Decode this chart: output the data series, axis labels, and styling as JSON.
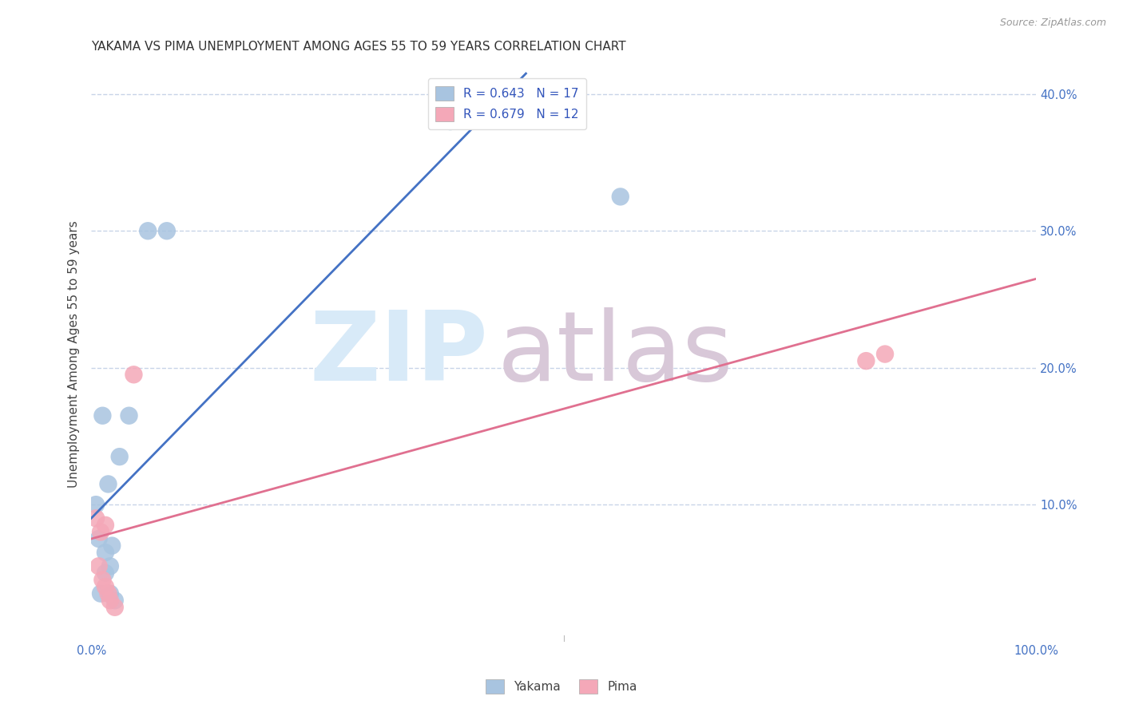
{
  "title": "YAKAMA VS PIMA UNEMPLOYMENT AMONG AGES 55 TO 59 YEARS CORRELATION CHART",
  "source": "Source: ZipAtlas.com",
  "xlabel": "",
  "ylabel": "Unemployment Among Ages 55 to 59 years",
  "xlim": [
    0,
    1.0
  ],
  "ylim": [
    0,
    0.42
  ],
  "xticks": [
    0.0,
    0.1,
    0.2,
    0.3,
    0.4,
    0.5,
    0.6,
    0.7,
    0.8,
    0.9,
    1.0
  ],
  "xticklabels": [
    "0.0%",
    "",
    "",
    "",
    "",
    "",
    "",
    "",
    "",
    "",
    "100.0%"
  ],
  "yticks": [
    0.0,
    0.1,
    0.2,
    0.3,
    0.4
  ],
  "yticklabels": [
    "",
    "10.0%",
    "20.0%",
    "30.0%",
    "40.0%"
  ],
  "legend_r_yakama": "R = 0.643",
  "legend_n_yakama": "N = 17",
  "legend_r_pima": "R = 0.679",
  "legend_n_pima": "N = 12",
  "yakama_color": "#a8c4e0",
  "pima_color": "#f4a8b8",
  "yakama_line_color": "#4472c4",
  "pima_line_color": "#e07090",
  "watermark_zip": "ZIP",
  "watermark_atlas": "atlas",
  "watermark_color_zip": "#d8eaf8",
  "watermark_color_atlas": "#d8c8d8",
  "yakama_x": [
    0.005,
    0.008,
    0.01,
    0.012,
    0.015,
    0.015,
    0.018,
    0.02,
    0.02,
    0.022,
    0.025,
    0.03,
    0.04,
    0.06,
    0.08,
    0.38,
    0.56
  ],
  "yakama_y": [
    0.1,
    0.075,
    0.035,
    0.165,
    0.05,
    0.065,
    0.115,
    0.035,
    0.055,
    0.07,
    0.03,
    0.135,
    0.165,
    0.3,
    0.3,
    0.38,
    0.325
  ],
  "pima_x": [
    0.005,
    0.008,
    0.01,
    0.012,
    0.015,
    0.015,
    0.018,
    0.02,
    0.025,
    0.045,
    0.82,
    0.84
  ],
  "pima_y": [
    0.09,
    0.055,
    0.08,
    0.045,
    0.04,
    0.085,
    0.035,
    0.03,
    0.025,
    0.195,
    0.205,
    0.21
  ],
  "yakama_line_x0": 0.0,
  "yakama_line_y0": 0.09,
  "yakama_line_x1": 0.46,
  "yakama_line_y1": 0.415,
  "pima_line_x0": 0.0,
  "pima_line_y0": 0.075,
  "pima_line_x1": 1.0,
  "pima_line_y1": 0.265,
  "background_color": "#ffffff",
  "grid_color": "#c8d4e8",
  "title_fontsize": 11,
  "axis_label_fontsize": 11,
  "tick_fontsize": 10.5,
  "legend_fontsize": 11
}
